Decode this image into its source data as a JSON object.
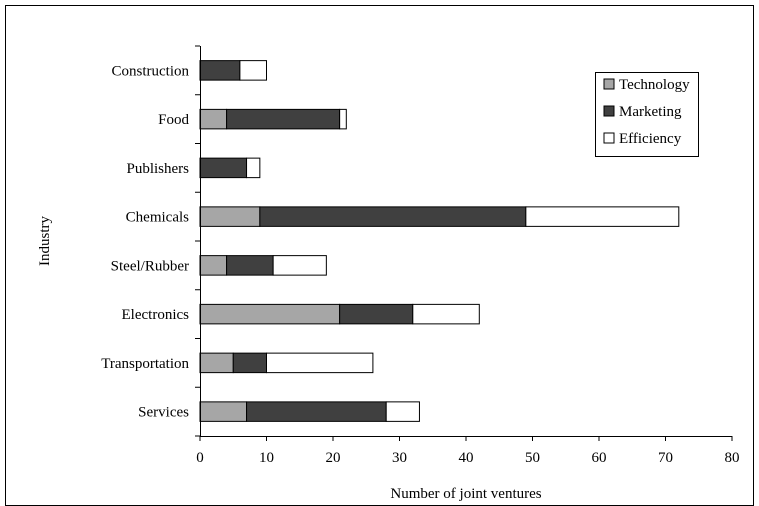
{
  "chart_data": {
    "type": "bar",
    "orientation": "horizontal",
    "stacked": true,
    "xlabel": "Number of joint ventures",
    "ylabel": "Industry",
    "xlim": [
      0,
      80
    ],
    "xticks": [
      0,
      10,
      20,
      30,
      40,
      50,
      60,
      70,
      80
    ],
    "grid": false,
    "legend_position": "top-right",
    "categories": [
      "Construction",
      "Food",
      "Publishers",
      "Chemicals",
      "Steel/Rubber",
      "Electronics",
      "Transportation",
      "Services"
    ],
    "series": [
      {
        "name": "Technology",
        "color": "#a6a6a6",
        "values": [
          0,
          4,
          0,
          9,
          4,
          21,
          5,
          7
        ]
      },
      {
        "name": "Marketing",
        "color": "#404040",
        "values": [
          6,
          17,
          7,
          40,
          7,
          11,
          5,
          21
        ]
      },
      {
        "name": "Efficiency",
        "color": "#ffffff",
        "values": [
          4,
          1,
          2,
          23,
          8,
          10,
          16,
          5
        ]
      }
    ]
  }
}
